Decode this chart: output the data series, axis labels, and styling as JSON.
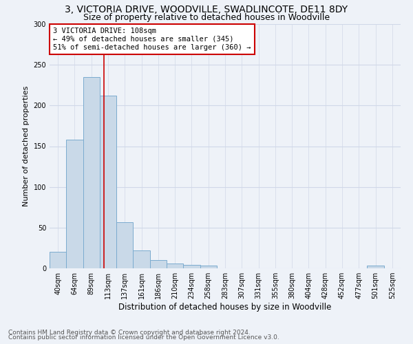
{
  "title1": "3, VICTORIA DRIVE, WOODVILLE, SWADLINCOTE, DE11 8DY",
  "title2": "Size of property relative to detached houses in Woodville",
  "xlabel": "Distribution of detached houses by size in Woodville",
  "ylabel": "Number of detached properties",
  "categories": [
    "40sqm",
    "64sqm",
    "89sqm",
    "113sqm",
    "137sqm",
    "161sqm",
    "186sqm",
    "210sqm",
    "234sqm",
    "258sqm",
    "283sqm",
    "307sqm",
    "331sqm",
    "355sqm",
    "380sqm",
    "404sqm",
    "428sqm",
    "452sqm",
    "477sqm",
    "501sqm",
    "525sqm"
  ],
  "values": [
    20,
    158,
    235,
    212,
    57,
    22,
    10,
    6,
    4,
    3,
    0,
    0,
    0,
    0,
    0,
    0,
    0,
    0,
    0,
    3,
    0
  ],
  "bar_color": "#c9d9e8",
  "bar_edge_color": "#7aabcf",
  "grid_color": "#d0d8e8",
  "background_color": "#eef2f8",
  "vline_x": 2.75,
  "vline_color": "#cc0000",
  "annotation_line1": "3 VICTORIA DRIVE: 108sqm",
  "annotation_line2": "← 49% of detached houses are smaller (345)",
  "annotation_line3": "51% of semi-detached houses are larger (360) →",
  "annotation_box_color": "#ffffff",
  "annotation_box_edge": "#cc0000",
  "ylim": [
    0,
    300
  ],
  "yticks": [
    0,
    50,
    100,
    150,
    200,
    250,
    300
  ],
  "footer1": "Contains HM Land Registry data © Crown copyright and database right 2024.",
  "footer2": "Contains public sector information licensed under the Open Government Licence v3.0.",
  "title1_fontsize": 10,
  "title2_fontsize": 9,
  "xlabel_fontsize": 8.5,
  "ylabel_fontsize": 8,
  "tick_fontsize": 7,
  "annotation_fontsize": 7.5,
  "footer_fontsize": 6.5
}
